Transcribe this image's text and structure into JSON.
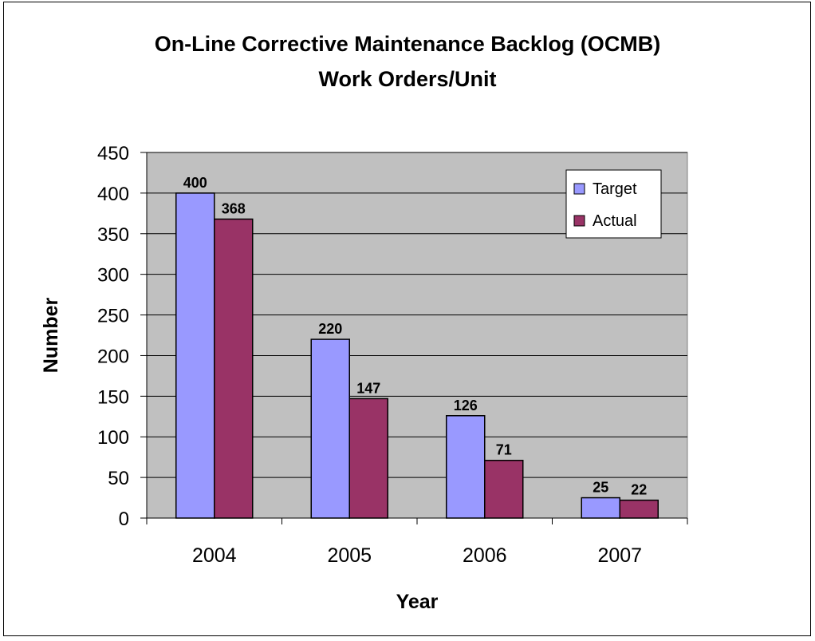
{
  "chart_data": {
    "type": "bar",
    "title": "On-Line Corrective Maintenance Backlog (OCMB)",
    "subtitle": "Work Orders/Unit",
    "xlabel": "Year",
    "ylabel": "Number",
    "categories": [
      "2004",
      "2005",
      "2006",
      "2007"
    ],
    "series": [
      {
        "name": "Target",
        "values": [
          400,
          220,
          126,
          25
        ],
        "color": "#9999ff"
      },
      {
        "name": "Actual",
        "values": [
          368,
          147,
          71,
          22
        ],
        "color": "#993366"
      }
    ],
    "ylim": [
      0,
      450
    ],
    "yticks": [
      0,
      50,
      100,
      150,
      200,
      250,
      300,
      350,
      400,
      450
    ],
    "plot_background": "#c0c0c0",
    "grid": true,
    "legend_position": "top-right",
    "data_labels": true
  }
}
